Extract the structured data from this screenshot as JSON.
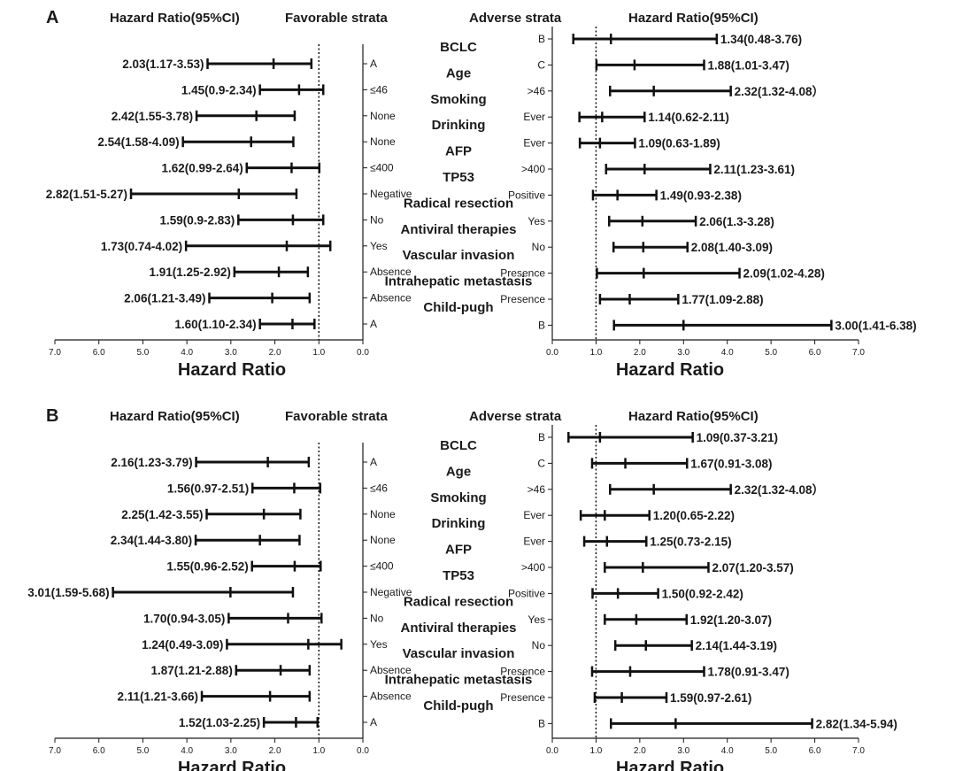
{
  "chart_data": [
    {
      "type": "forest",
      "panel": "A",
      "headers": {
        "left_hr": "Hazard Ratio(95%CI)",
        "favorable": "Favorable strata",
        "adverse": "Adverse strata",
        "right_hr": "Hazard Ratio(95%CI)"
      },
      "xlabel": "Hazard Ratio",
      "xticks": [
        "0.0",
        "1.0",
        "2.0",
        "3.0",
        "4.0",
        "5.0",
        "6.0",
        "7.0"
      ],
      "xlim": [
        0,
        7
      ],
      "reference_line": 1.0,
      "variables": [
        "BCLC",
        "Age",
        "Smoking",
        "Drinking",
        "AFP",
        "TP53",
        "Radical resection",
        "Antiviral therapies",
        "Vascular invasion",
        "Intrahepatic metastasis",
        "Child-pugh"
      ],
      "favorable": [
        {
          "stratum": "A",
          "hr": 2.03,
          "lo": 1.17,
          "hi": 3.53,
          "label": "2.03(1.17-3.53)"
        },
        {
          "stratum": "≤46",
          "hr": 1.45,
          "lo": 0.9,
          "hi": 2.34,
          "label": "1.45(0.9-2.34)"
        },
        {
          "stratum": "None",
          "hr": 2.42,
          "lo": 1.55,
          "hi": 3.78,
          "label": "2.42(1.55-3.78)"
        },
        {
          "stratum": "None",
          "hr": 2.54,
          "lo": 1.58,
          "hi": 4.09,
          "label": "2.54(1.58-4.09)"
        },
        {
          "stratum": "≤400",
          "hr": 1.62,
          "lo": 0.99,
          "hi": 2.64,
          "label": "1.62(0.99-2.64)"
        },
        {
          "stratum": "Negative",
          "hr": 2.82,
          "lo": 1.51,
          "hi": 5.27,
          "label": "2.82(1.51-5.27)"
        },
        {
          "stratum": "No",
          "hr": 1.59,
          "lo": 0.9,
          "hi": 2.83,
          "label": "1.59(0.9-2.83)"
        },
        {
          "stratum": "Yes",
          "hr": 1.73,
          "lo": 0.74,
          "hi": 4.02,
          "label": "1.73(0.74-4.02)"
        },
        {
          "stratum": "Absence",
          "hr": 1.91,
          "lo": 1.25,
          "hi": 2.92,
          "label": "1.91(1.25-2.92)"
        },
        {
          "stratum": "Absence",
          "hr": 2.06,
          "lo": 1.21,
          "hi": 3.49,
          "label": "2.06(1.21-3.49)"
        },
        {
          "stratum": "A",
          "hr": 1.6,
          "lo": 1.1,
          "hi": 2.34,
          "label": "1.60(1.10-2.34)"
        }
      ],
      "adverse": [
        {
          "stratum": "B",
          "hr": 1.34,
          "lo": 0.48,
          "hi": 3.76,
          "label": "1.34(0.48-3.76)"
        },
        {
          "stratum": "C",
          "hr": 1.88,
          "lo": 1.01,
          "hi": 3.47,
          "label": "1.88(1.01-3.47)"
        },
        {
          "stratum": ">46",
          "hr": 2.32,
          "lo": 1.32,
          "hi": 4.08,
          "label": "2.32(1.32-4.08）"
        },
        {
          "stratum": "Ever",
          "hr": 1.14,
          "lo": 0.62,
          "hi": 2.11,
          "label": "1.14(0.62-2.11)"
        },
        {
          "stratum": "Ever",
          "hr": 1.09,
          "lo": 0.63,
          "hi": 1.89,
          "label": "1.09(0.63-1.89)"
        },
        {
          "stratum": ">400",
          "hr": 2.11,
          "lo": 1.23,
          "hi": 3.61,
          "label": "2.11(1.23-3.61)"
        },
        {
          "stratum": "Positive",
          "hr": 1.49,
          "lo": 0.93,
          "hi": 2.38,
          "label": "1.49(0.93-2.38)"
        },
        {
          "stratum": "Yes",
          "hr": 2.06,
          "lo": 1.3,
          "hi": 3.28,
          "label": "2.06(1.3-3.28)"
        },
        {
          "stratum": "No",
          "hr": 2.08,
          "lo": 1.4,
          "hi": 3.09,
          "label": "2.08(1.40-3.09)"
        },
        {
          "stratum": "Presence",
          "hr": 2.09,
          "lo": 1.02,
          "hi": 4.28,
          "label": "2.09(1.02-4.28)"
        },
        {
          "stratum": "Presence",
          "hr": 1.77,
          "lo": 1.09,
          "hi": 2.88,
          "label": "1.77(1.09-2.88)"
        },
        {
          "stratum": "B",
          "hr": 3.0,
          "lo": 1.41,
          "hi": 6.38,
          "label": "3.00(1.41-6.38)"
        }
      ]
    },
    {
      "type": "forest",
      "panel": "B",
      "headers": {
        "left_hr": "Hazard Ratio(95%CI)",
        "favorable": "Favorable strata",
        "adverse": "Adverse strata",
        "right_hr": "Hazard Ratio(95%CI)"
      },
      "xlabel": "Hazard Ratio",
      "xticks": [
        "0.0",
        "1.0",
        "2.0",
        "3.0",
        "4.0",
        "5.0",
        "6.0",
        "7.0"
      ],
      "xlim": [
        0,
        7
      ],
      "reference_line": 1.0,
      "variables": [
        "BCLC",
        "Age",
        "Smoking",
        "Drinking",
        "AFP",
        "TP53",
        "Radical resection",
        "Antiviral therapies",
        "Vascular invasion",
        "Intrahepatic metastasis",
        "Child-pugh"
      ],
      "favorable": [
        {
          "stratum": "A",
          "hr": 2.16,
          "lo": 1.23,
          "hi": 3.79,
          "label": "2.16(1.23-3.79)"
        },
        {
          "stratum": "≤46",
          "hr": 1.56,
          "lo": 0.97,
          "hi": 2.51,
          "label": "1.56(0.97-2.51)"
        },
        {
          "stratum": "None",
          "hr": 2.25,
          "lo": 1.42,
          "hi": 3.55,
          "label": "2.25(1.42-3.55)"
        },
        {
          "stratum": "None",
          "hr": 2.34,
          "lo": 1.44,
          "hi": 3.8,
          "label": "2.34(1.44-3.80)"
        },
        {
          "stratum": "≤400",
          "hr": 1.55,
          "lo": 0.96,
          "hi": 2.52,
          "label": "1.55(0.96-2.52)"
        },
        {
          "stratum": "Negative",
          "hr": 3.01,
          "lo": 1.59,
          "hi": 5.68,
          "label": "3.01(1.59-5.68)"
        },
        {
          "stratum": "No",
          "hr": 1.7,
          "lo": 0.94,
          "hi": 3.05,
          "label": "1.70(0.94-3.05)"
        },
        {
          "stratum": "Yes",
          "hr": 1.24,
          "lo": 0.49,
          "hi": 3.09,
          "label": "1.24(0.49-3.09)"
        },
        {
          "stratum": "Absence",
          "hr": 1.87,
          "lo": 1.21,
          "hi": 2.88,
          "label": "1.87(1.21-2.88)"
        },
        {
          "stratum": "Absence",
          "hr": 2.11,
          "lo": 1.21,
          "hi": 3.66,
          "label": "2.11(1.21-3.66)"
        },
        {
          "stratum": "A",
          "hr": 1.52,
          "lo": 1.03,
          "hi": 2.25,
          "label": "1.52(1.03-2.25)"
        }
      ],
      "adverse": [
        {
          "stratum": "B",
          "hr": 1.09,
          "lo": 0.37,
          "hi": 3.21,
          "label": "1.09(0.37-3.21)"
        },
        {
          "stratum": "C",
          "hr": 1.67,
          "lo": 0.91,
          "hi": 3.08,
          "label": "1.67(0.91-3.08)"
        },
        {
          "stratum": ">46",
          "hr": 2.32,
          "lo": 1.32,
          "hi": 4.08,
          "label": "2.32(1.32-4.08）"
        },
        {
          "stratum": "Ever",
          "hr": 1.2,
          "lo": 0.65,
          "hi": 2.22,
          "label": "1.20(0.65-2.22)"
        },
        {
          "stratum": "Ever",
          "hr": 1.25,
          "lo": 0.73,
          "hi": 2.15,
          "label": "1.25(0.73-2.15)"
        },
        {
          "stratum": ">400",
          "hr": 2.07,
          "lo": 1.2,
          "hi": 3.57,
          "label": "2.07(1.20-3.57)"
        },
        {
          "stratum": "Positive",
          "hr": 1.5,
          "lo": 0.92,
          "hi": 2.42,
          "label": "1.50(0.92-2.42)"
        },
        {
          "stratum": "Yes",
          "hr": 1.92,
          "lo": 1.2,
          "hi": 3.07,
          "label": "1.92(1.20-3.07)"
        },
        {
          "stratum": "No",
          "hr": 2.14,
          "lo": 1.44,
          "hi": 3.19,
          "label": "2.14(1.44-3.19)"
        },
        {
          "stratum": "Presence",
          "hr": 1.78,
          "lo": 0.91,
          "hi": 3.47,
          "label": "1.78(0.91-3.47)"
        },
        {
          "stratum": "Presence",
          "hr": 1.59,
          "lo": 0.97,
          "hi": 2.61,
          "label": "1.59(0.97-2.61)"
        },
        {
          "stratum": "B",
          "hr": 2.82,
          "lo": 1.34,
          "hi": 5.94,
          "label": "2.82(1.34-5.94)"
        }
      ]
    }
  ]
}
